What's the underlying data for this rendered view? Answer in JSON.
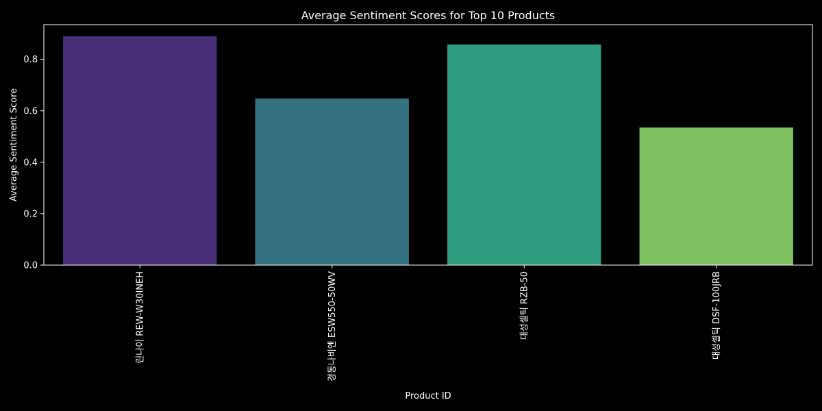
{
  "chart_data": {
    "type": "bar",
    "title": "Average Sentiment Scores for Top 10 Products",
    "xlabel": "Product ID",
    "ylabel": "Average Sentiment Score",
    "categories": [
      "린나이 REW-W30INEH",
      "경동나비엔 ESW550-50WV",
      "대성셀틱 RZB-50",
      "대성셀틱 DSF-100JRB"
    ],
    "values": [
      0.89,
      0.648,
      0.858,
      0.535
    ],
    "colors": [
      "#482f78",
      "#357281",
      "#2f9b7f",
      "#7fc160"
    ],
    "ylim": [
      0,
      0.9
    ],
    "yticks": [
      0.0,
      0.2,
      0.4,
      0.6,
      0.8
    ],
    "ytick_labels": [
      "0.0",
      "0.2",
      "0.4",
      "0.6",
      "0.8"
    ],
    "grid": false,
    "background": "#000000",
    "text_color": "#ffffff"
  }
}
